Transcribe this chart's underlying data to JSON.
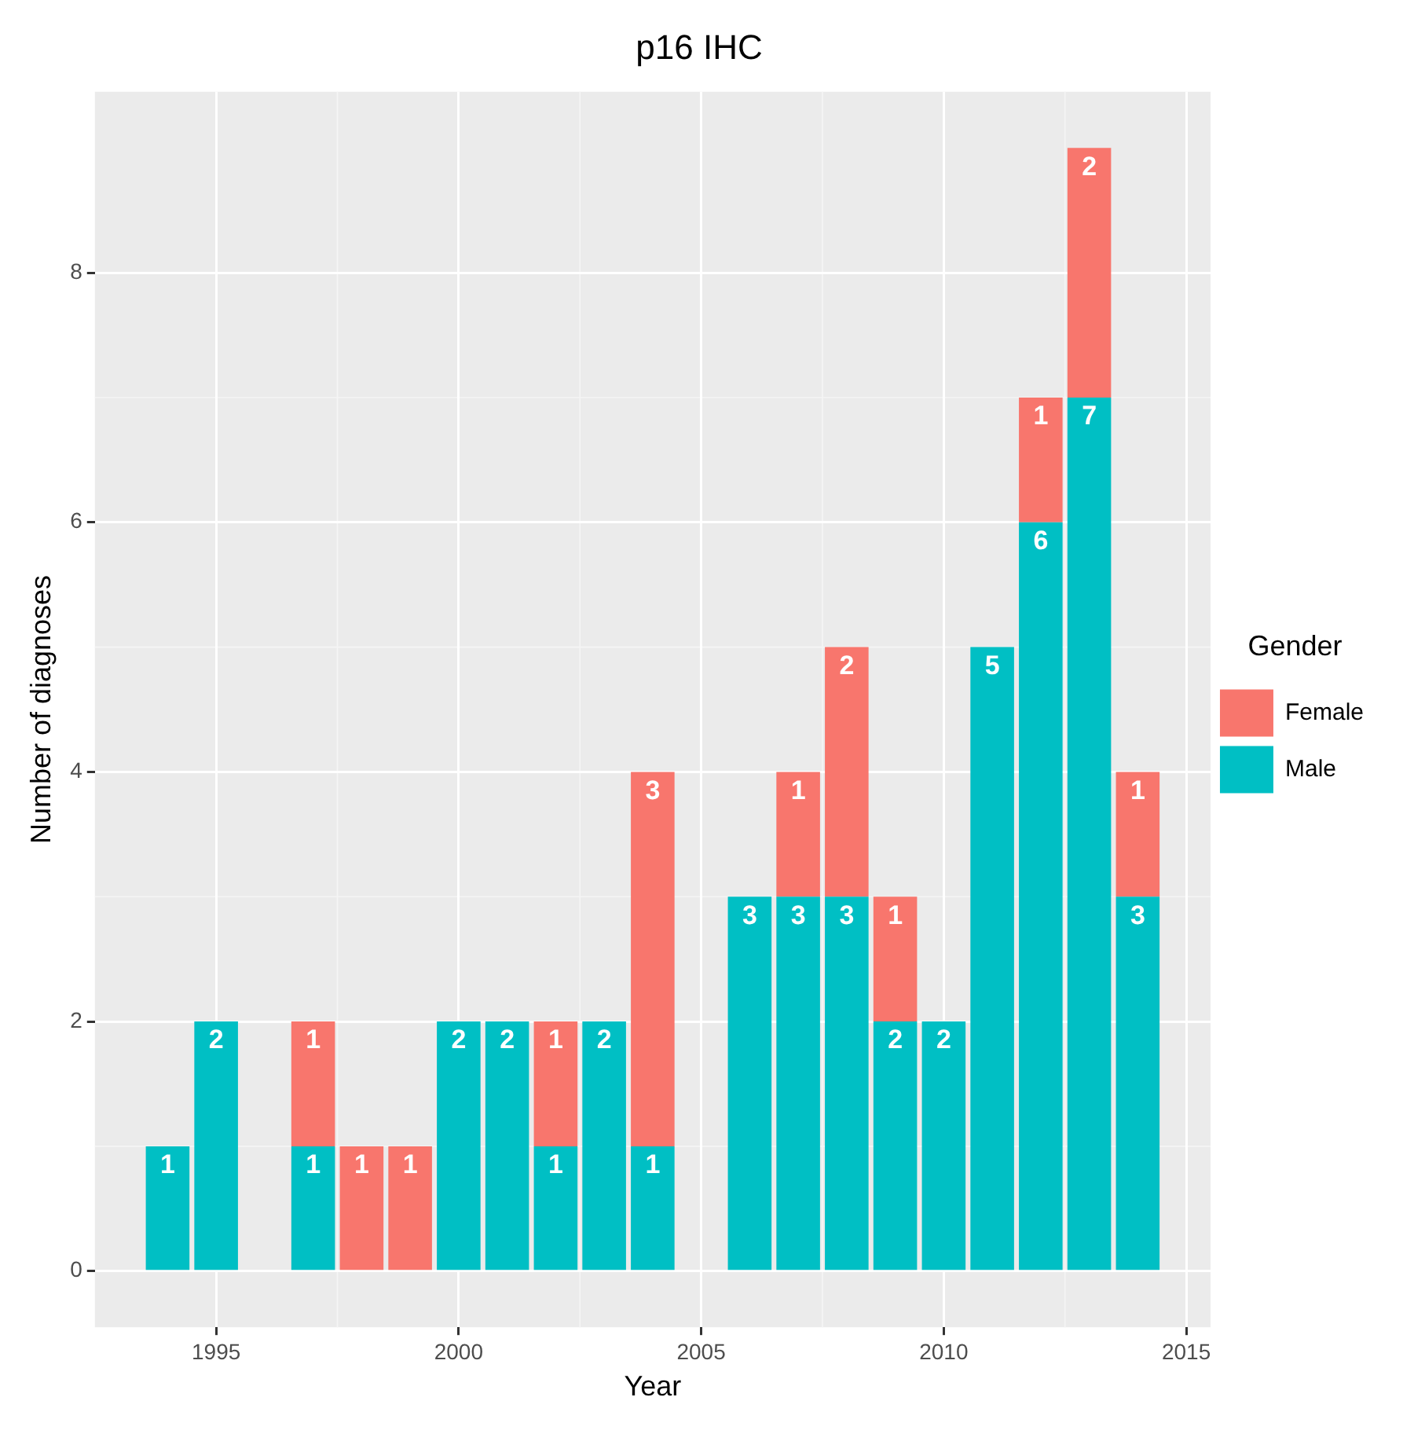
{
  "chart_data": {
    "type": "bar",
    "title": "p16 IHC",
    "xlabel": "Year",
    "ylabel": "Number of diagnoses",
    "legend_title": "Gender",
    "x": [
      1994,
      1995,
      1996,
      1997,
      1998,
      1999,
      2000,
      2001,
      2002,
      2003,
      2004,
      2005,
      2006,
      2007,
      2008,
      2009,
      2010,
      2011,
      2012,
      2013,
      2014
    ],
    "series": [
      {
        "name": "Male",
        "color": "#00bfc4",
        "values": [
          1,
          2,
          null,
          1,
          null,
          null,
          2,
          2,
          1,
          2,
          1,
          null,
          3,
          3,
          3,
          2,
          2,
          5,
          6,
          7,
          3
        ]
      },
      {
        "name": "Female",
        "color": "#f8766d",
        "values": [
          null,
          null,
          null,
          1,
          1,
          1,
          null,
          null,
          1,
          null,
          3,
          null,
          null,
          1,
          2,
          1,
          null,
          null,
          1,
          2,
          1
        ]
      }
    ],
    "stacked": true,
    "data_labels": true,
    "xlim": [
      1992.5,
      2015.5
    ],
    "xticks": [
      1995,
      2000,
      2005,
      2010,
      2015
    ],
    "ylim": [
      -0.45,
      9.45
    ],
    "yticks": [
      0,
      2,
      4,
      6,
      8
    ],
    "grid": true,
    "legend": "right"
  }
}
